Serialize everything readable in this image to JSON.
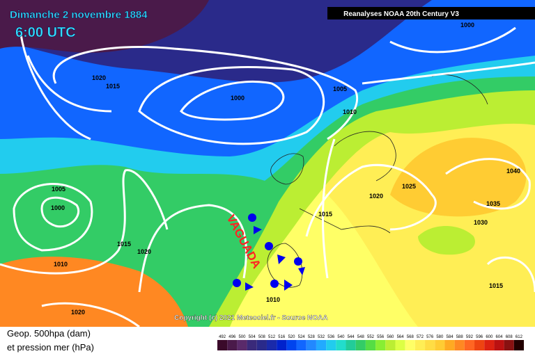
{
  "map": {
    "title": "Dimanche 2 novembre 1884",
    "time": "6:00 UTC",
    "source_label": "Reanalyses NOAA 20th Century V3",
    "annotation": "VAGUADA",
    "copyright": "Copyright (c) 2021 Meteociel.fr - Source NOAA",
    "legend_line1": "Geop. 500hpa (dam)",
    "legend_line2": "et pression mer (hPa)",
    "isobar_labels": [
      "1000",
      "1020",
      "1015",
      "1000",
      "1005",
      "1010",
      "1040",
      "1005",
      "1000",
      "1025",
      "1020",
      "1035",
      "1015",
      "1030",
      "1015",
      "1020",
      "1010",
      "1015",
      "1010",
      "1020"
    ],
    "scale_labels": [
      "492",
      "496",
      "500",
      "504",
      "508",
      "512",
      "516",
      "520",
      "524",
      "528",
      "532",
      "536",
      "540",
      "544",
      "548",
      "552",
      "556",
      "560",
      "564",
      "568",
      "572",
      "576",
      "580",
      "584",
      "588",
      "592",
      "596",
      "600",
      "604",
      "608",
      "612"
    ],
    "scale_colors": [
      "#3a0a2a",
      "#4a1a4a",
      "#5a2a6a",
      "#3a2a7a",
      "#2a2a8a",
      "#1a2aaa",
      "#0022cc",
      "#0044ee",
      "#1166ff",
      "#2288ff",
      "#22aaff",
      "#22ccee",
      "#22ddcc",
      "#22cc99",
      "#33cc66",
      "#55dd44",
      "#88ee33",
      "#bbee33",
      "#ddff44",
      "#ffff66",
      "#ffee55",
      "#ffdd44",
      "#ffcc33",
      "#ffaa22",
      "#ff8822",
      "#ff6622",
      "#ee4411",
      "#dd2211",
      "#bb1111",
      "#881111",
      "#220000"
    ]
  }
}
